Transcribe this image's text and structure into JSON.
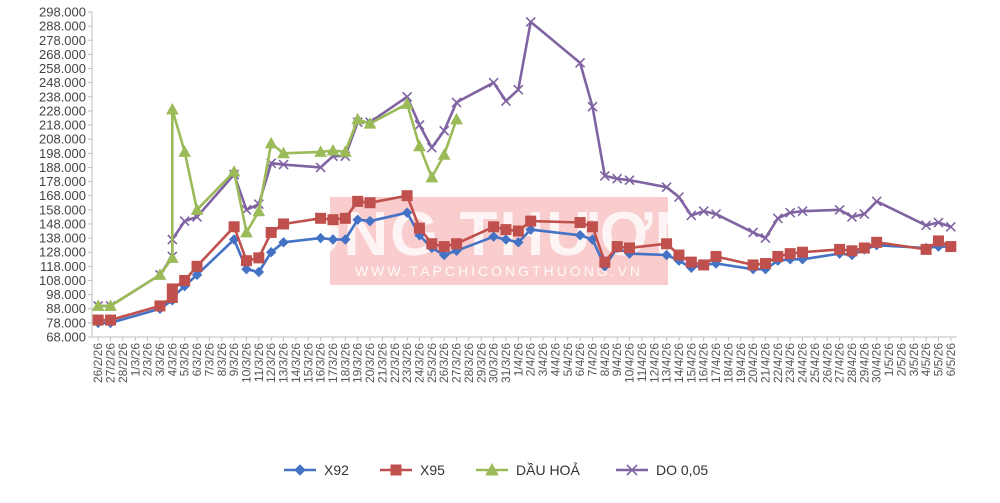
{
  "chart_data": {
    "type": "line",
    "title": "",
    "xlabel": "",
    "ylabel": "",
    "ylim": [
      68.0,
      298.0
    ],
    "y_ticks": [
      "68.000",
      "78.000",
      "88.000",
      "98.000",
      "108.000",
      "118.000",
      "128.000",
      "138.000",
      "148.000",
      "158.000",
      "168.000",
      "178.000",
      "188.000",
      "198.000",
      "208.000",
      "218.000",
      "228.000",
      "238.000",
      "248.000",
      "258.000",
      "268.000",
      "278.000",
      "288.000",
      "298.000"
    ],
    "x_ticks": [
      "26/2/26",
      "27/2/26",
      "28/2/26",
      "1/3/26",
      "2/3/26",
      "3/3/26",
      "4/3/26",
      "5/3/26",
      "6/3/26",
      "7/3/26",
      "8/3/26",
      "9/3/26",
      "10/3/26",
      "11/3/26",
      "12/3/26",
      "13/3/26",
      "14/3/26",
      "15/3/26",
      "16/3/26",
      "17/3/26",
      "18/3/26",
      "19/3/26",
      "20/3/26",
      "21/3/26",
      "22/3/26",
      "23/3/26",
      "24/3/26",
      "25/3/26",
      "26/3/26",
      "27/3/26",
      "28/3/26",
      "29/3/26",
      "30/3/26",
      "31/3/26",
      "1/4/26",
      "2/4/26",
      "3/4/26",
      "4/4/26",
      "5/4/26",
      "6/4/26",
      "7/4/26",
      "8/4/26",
      "9/4/26",
      "10/4/26",
      "11/4/26",
      "12/4/26",
      "13/4/26",
      "14/4/26",
      "15/4/26",
      "16/4/26",
      "17/4/26",
      "18/4/26",
      "19/4/26",
      "20/4/26",
      "21/4/26",
      "22/4/26",
      "23/4/26",
      "24/4/26",
      "25/4/26",
      "26/4/26",
      "27/4/26",
      "28/4/26",
      "29/4/26",
      "30/4/26",
      "1/5/26",
      "2/5/26",
      "3/5/26",
      "4/5/26",
      "5/5/26",
      "6/5/26"
    ],
    "grid": false,
    "legend_position": "bottom",
    "series": [
      {
        "name": "X92",
        "color": "#4472C4",
        "marker": "diamond",
        "points": [
          [
            "26/2/26",
            78.0
          ],
          [
            "27/2/26",
            78.0
          ],
          [
            "3/3/26",
            88.0
          ],
          [
            "4/3/26",
            94.0
          ],
          [
            "4/3/26",
            96.0
          ],
          [
            "5/3/26",
            104.0
          ],
          [
            "6/3/26",
            112.0
          ],
          [
            "9/3/26",
            137.0
          ],
          [
            "10/3/26",
            116.0
          ],
          [
            "11/3/26",
            114.0
          ],
          [
            "12/3/26",
            128.0
          ],
          [
            "13/3/26",
            135.0
          ],
          [
            "16/3/26",
            138.0
          ],
          [
            "17/3/26",
            137.0
          ],
          [
            "18/3/26",
            137.0
          ],
          [
            "19/3/26",
            151.0
          ],
          [
            "20/3/26",
            150.0
          ],
          [
            "23/3/26",
            156.0
          ],
          [
            "24/3/26",
            140.0
          ],
          [
            "25/3/26",
            131.0
          ],
          [
            "26/3/26",
            126.0
          ],
          [
            "27/3/26",
            129.0
          ],
          [
            "30/3/26",
            139.0
          ],
          [
            "31/3/26",
            137.0
          ],
          [
            "1/4/26",
            135.0
          ],
          [
            "2/4/26",
            144.0
          ],
          [
            "6/4/26",
            140.0
          ],
          [
            "7/4/26",
            137.0
          ],
          [
            "8/4/26",
            118.0
          ],
          [
            "9/4/26",
            131.0
          ],
          [
            "10/4/26",
            127.0
          ],
          [
            "13/4/26",
            126.0
          ],
          [
            "14/4/26",
            122.0
          ],
          [
            "15/4/26",
            117.0
          ],
          [
            "16/4/26",
            119.0
          ],
          [
            "17/4/26",
            120.0
          ],
          [
            "20/4/26",
            116.0
          ],
          [
            "21/4/26",
            116.0
          ],
          [
            "22/4/26",
            122.0
          ],
          [
            "23/4/26",
            123.0
          ],
          [
            "24/4/26",
            123.0
          ],
          [
            "27/4/26",
            127.0
          ],
          [
            "28/4/26",
            126.0
          ],
          [
            "29/4/26",
            130.0
          ],
          [
            "30/4/26",
            133.0
          ],
          [
            "4/5/26",
            131.0
          ],
          [
            "5/5/26",
            132.0
          ],
          [
            "6/5/26",
            132.0
          ]
        ]
      },
      {
        "name": "X95",
        "color": "#C0504D",
        "marker": "square",
        "points": [
          [
            "26/2/26",
            80.0
          ],
          [
            "27/2/26",
            80.0
          ],
          [
            "3/3/26",
            90.0
          ],
          [
            "4/3/26",
            96.0
          ],
          [
            "4/3/26",
            102.0
          ],
          [
            "5/3/26",
            108.0
          ],
          [
            "6/3/26",
            118.0
          ],
          [
            "9/3/26",
            146.0
          ],
          [
            "10/3/26",
            122.0
          ],
          [
            "11/3/26",
            124.0
          ],
          [
            "12/3/26",
            142.0
          ],
          [
            "13/3/26",
            148.0
          ],
          [
            "16/3/26",
            152.0
          ],
          [
            "17/3/26",
            151.0
          ],
          [
            "18/3/26",
            152.0
          ],
          [
            "19/3/26",
            164.0
          ],
          [
            "20/3/26",
            163.0
          ],
          [
            "23/3/26",
            168.0
          ],
          [
            "24/3/26",
            145.0
          ],
          [
            "25/3/26",
            134.0
          ],
          [
            "26/3/26",
            132.0
          ],
          [
            "27/3/26",
            134.0
          ],
          [
            "30/3/26",
            146.0
          ],
          [
            "31/3/26",
            144.0
          ],
          [
            "1/4/26",
            143.0
          ],
          [
            "2/4/26",
            150.0
          ],
          [
            "6/4/26",
            149.0
          ],
          [
            "7/4/26",
            146.0
          ],
          [
            "8/4/26",
            121.0
          ],
          [
            "9/4/26",
            132.0
          ],
          [
            "10/4/26",
            131.0
          ],
          [
            "13/4/26",
            134.0
          ],
          [
            "14/4/26",
            126.0
          ],
          [
            "15/4/26",
            121.0
          ],
          [
            "16/4/26",
            119.0
          ],
          [
            "17/4/26",
            125.0
          ],
          [
            "20/4/26",
            119.0
          ],
          [
            "21/4/26",
            120.0
          ],
          [
            "22/4/26",
            125.0
          ],
          [
            "23/4/26",
            127.0
          ],
          [
            "24/4/26",
            128.0
          ],
          [
            "27/4/26",
            130.0
          ],
          [
            "28/4/26",
            129.0
          ],
          [
            "29/4/26",
            131.0
          ],
          [
            "30/4/26",
            135.0
          ],
          [
            "4/5/26",
            130.0
          ],
          [
            "5/5/26",
            136.0
          ],
          [
            "6/5/26",
            132.0
          ]
        ]
      },
      {
        "name": "DẦU HOẢ",
        "color": "#9BBB59",
        "marker": "triangle",
        "points": [
          [
            "26/2/26",
            90.0
          ],
          [
            "27/2/26",
            90.0
          ],
          [
            "3/3/26",
            112.0
          ],
          [
            "4/3/26",
            124.0
          ],
          [
            "4/3/26",
            229.0
          ],
          [
            "5/3/26",
            199.0
          ],
          [
            "6/3/26",
            158.0
          ],
          [
            "9/3/26",
            185.0
          ],
          [
            "10/3/26",
            142.0
          ],
          [
            "11/3/26",
            157.0
          ],
          [
            "12/3/26",
            205.0
          ],
          [
            "13/3/26",
            198.0
          ],
          [
            "16/3/26",
            199.0
          ],
          [
            "17/3/26",
            200.0
          ],
          [
            "18/3/26",
            199.0
          ],
          [
            "19/3/26",
            222.0
          ],
          [
            "20/3/26",
            219.0
          ],
          [
            "23/3/26",
            233.0
          ],
          [
            "24/3/26",
            203.0
          ],
          [
            "25/3/26",
            181.0
          ],
          [
            "26/3/26",
            197.0
          ],
          [
            "27/3/26",
            222.0
          ]
        ]
      },
      {
        "name": "DO 0,05",
        "color": "#8064A2",
        "marker": "x",
        "points": [
          [
            "26/2/26",
            90.0
          ],
          [
            "27/2/26",
            90.0
          ],
          [
            "3/3/26",
            112.0
          ],
          [
            "4/3/26",
            125.0
          ],
          [
            "4/3/26",
            137.0
          ],
          [
            "5/3/26",
            150.0
          ],
          [
            "6/3/26",
            153.0
          ],
          [
            "9/3/26",
            183.0
          ],
          [
            "10/3/26",
            158.0
          ],
          [
            "11/3/26",
            162.0
          ],
          [
            "12/3/26",
            191.0
          ],
          [
            "13/3/26",
            190.0
          ],
          [
            "16/3/26",
            188.0
          ],
          [
            "17/3/26",
            196.0
          ],
          [
            "18/3/26",
            196.0
          ],
          [
            "19/3/26",
            220.0
          ],
          [
            "20/3/26",
            220.0
          ],
          [
            "23/3/26",
            238.0
          ],
          [
            "24/3/26",
            218.0
          ],
          [
            "25/3/26",
            202.0
          ],
          [
            "26/3/26",
            214.0
          ],
          [
            "27/3/26",
            234.0
          ],
          [
            "30/3/26",
            248.0
          ],
          [
            "31/3/26",
            235.0
          ],
          [
            "1/4/26",
            243.0
          ],
          [
            "2/4/26",
            291.0
          ],
          [
            "6/4/26",
            262.0
          ],
          [
            "7/4/26",
            231.0
          ],
          [
            "8/4/26",
            182.0
          ],
          [
            "9/4/26",
            180.0
          ],
          [
            "10/4/26",
            179.0
          ],
          [
            "13/4/26",
            174.0
          ],
          [
            "14/4/26",
            167.0
          ],
          [
            "15/4/26",
            154.0
          ],
          [
            "16/4/26",
            157.0
          ],
          [
            "17/4/26",
            155.0
          ],
          [
            "20/4/26",
            142.0
          ],
          [
            "21/4/26",
            138.0
          ],
          [
            "22/4/26",
            152.0
          ],
          [
            "23/4/26",
            156.0
          ],
          [
            "24/4/26",
            157.0
          ],
          [
            "27/4/26",
            158.0
          ],
          [
            "28/4/26",
            153.0
          ],
          [
            "29/4/26",
            155.0
          ],
          [
            "30/4/26",
            164.0
          ],
          [
            "4/5/26",
            147.0
          ],
          [
            "5/5/26",
            149.0
          ],
          [
            "6/5/26",
            146.0
          ]
        ]
      }
    ]
  }
}
